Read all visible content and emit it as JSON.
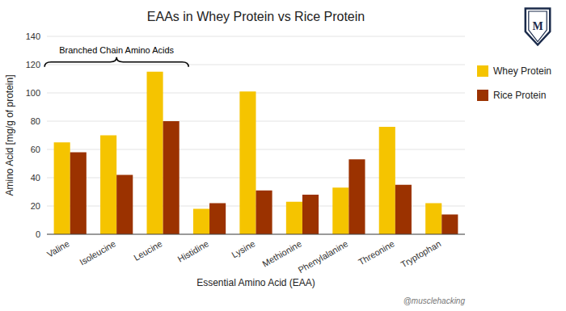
{
  "chart_data": {
    "type": "bar",
    "title": "EAAs in Whey Protein vs Rice Protein",
    "x_label": "Essential Amino Acid (EAA)",
    "y_label": "Amino Acid [mg/g of protein]",
    "categories": [
      "Valine",
      "Isoleucine",
      "Leucine",
      "Histidine",
      "Lysine",
      "Methionine",
      "Phenylalanine",
      "Threonine",
      "Tryptophan"
    ],
    "series": [
      {
        "name": "Whey Protein",
        "color": "#F5C400",
        "values": [
          65,
          70,
          115,
          18,
          101,
          23,
          33,
          76,
          22
        ]
      },
      {
        "name": "Rice Protein",
        "color": "#9B3200",
        "values": [
          58,
          42,
          80,
          22,
          31,
          28,
          53,
          35,
          14
        ]
      }
    ],
    "ylim": [
      0,
      140
    ],
    "yticks": [
      0,
      20,
      40,
      60,
      80,
      100,
      120,
      140
    ],
    "grid": true,
    "legend": "right",
    "annotations": [
      {
        "text": "Branched Chain Amino Acids",
        "span": [
          "Valine",
          "Leucine"
        ]
      }
    ],
    "watermark": "@musclehacking",
    "logo_text": "M"
  }
}
